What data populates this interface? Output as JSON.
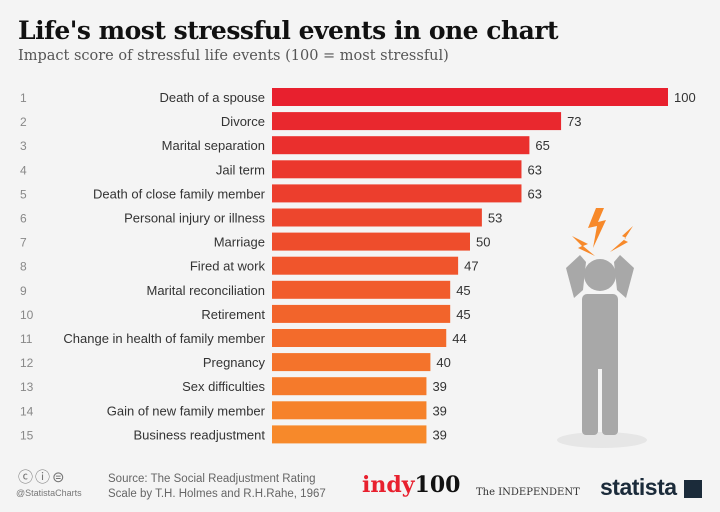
{
  "chart_data": {
    "type": "bar",
    "orientation": "horizontal",
    "title": "Life's most stressful events in one chart",
    "subtitle": "Impact score of stressful life events (100 = most stressful)",
    "ranks": [
      "1",
      "2",
      "3",
      "4",
      "5",
      "6",
      "7",
      "8",
      "9",
      "10",
      "11",
      "12",
      "13",
      "14",
      "15"
    ],
    "categories": [
      "Death of a spouse",
      "Divorce",
      "Marital separation",
      "Jail term",
      "Death of close family member",
      "Personal injury or illness",
      "Marriage",
      "Fired at work",
      "Marital reconciliation",
      "Retirement",
      "Change in health of family member",
      "Pregnancy",
      "Sex difficulties",
      "Gain of new family member",
      "Business readjustment"
    ],
    "values": [
      100,
      73,
      65,
      63,
      63,
      53,
      50,
      47,
      45,
      45,
      44,
      40,
      39,
      39,
      39
    ],
    "xlim": [
      0,
      100
    ],
    "grid": false,
    "colors": {
      "start": "#e8202e",
      "end": "#f7892a"
    }
  },
  "footer": {
    "license_icons": "cc-by-nd-icons",
    "handle": "@StatistaCharts",
    "source_line1": "Source: The Social Readjustment Rating",
    "source_line2": "Scale by T.H. Holmes and R.H.Rahe, 1967",
    "indy_a": "indy",
    "indy_b": "100",
    "independent": "The INDEPENDENT",
    "statista": "statista"
  },
  "illustration": "stressed-person-icon"
}
